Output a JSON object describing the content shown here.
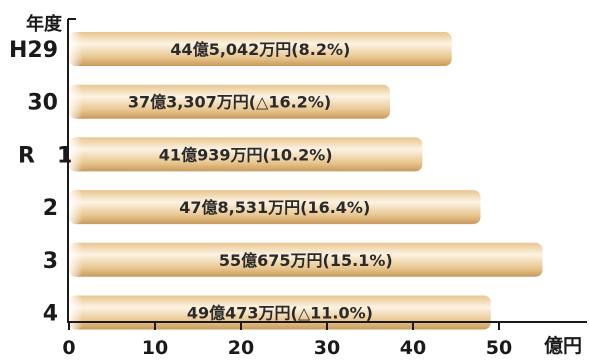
{
  "chart_data": {
    "type": "bar",
    "orientation": "horizontal",
    "y_header": "年度",
    "categories": [
      "H29",
      "30",
      "R　1",
      "2",
      "3",
      "4"
    ],
    "values": [
      44.5042,
      37.3307,
      41.0939,
      47.8531,
      55.0675,
      49.0473
    ],
    "labels": [
      "44億5,042万円(8.2%)",
      "37億3,307万円(△16.2%)",
      "41億939万円(10.2%)",
      "47億8,531万円(16.4%)",
      "55億675万円(15.1%)",
      "49億473万円(△11.0%)"
    ],
    "x_ticks": [
      "0",
      "10",
      "20",
      "30",
      "40",
      "50"
    ],
    "x_unit": "億円",
    "xlim": [
      0,
      60
    ],
    "bar_color": "#e8c58e",
    "bar_highlight": "#fdf3e3",
    "bar_shadow": "#c89a5c"
  }
}
